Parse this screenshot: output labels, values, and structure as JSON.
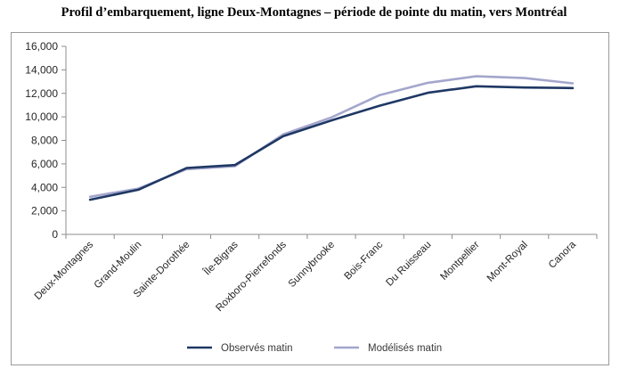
{
  "chart_data": {
    "type": "line",
    "title": "Profil d’embarquement, ligne Deux-Montagnes – période de pointe du matin, vers Montréal",
    "xlabel": "",
    "ylabel": "",
    "ylim": [
      0,
      16000
    ],
    "yticks": [
      "0",
      "2,000",
      "4,000",
      "6,000",
      "8,000",
      "10,000",
      "12,000",
      "14,000",
      "16,000"
    ],
    "grid": false,
    "legend_position": "bottom",
    "categories": [
      "Deux-Montagnes",
      "Grand-Moulin",
      "Sainte-Dorothée",
      "Île-Bigras",
      "Roxboro-Pierrefonds",
      "Sunnybrooke",
      "Bois-Franc",
      "Du Ruisseau",
      "Montpellier",
      "Mont-Royal",
      "Canora"
    ],
    "series": [
      {
        "name": "Observés matin",
        "color": "#1f3864",
        "values": [
          2950,
          3800,
          5650,
          5900,
          8350,
          9700,
          10950,
          12050,
          12600,
          12500,
          12450
        ]
      },
      {
        "name": "Modélisés matin",
        "color": "#a3a6cc",
        "values": [
          3200,
          3900,
          5550,
          5800,
          8500,
          9950,
          11850,
          12900,
          13450,
          13300,
          12850
        ]
      }
    ]
  }
}
